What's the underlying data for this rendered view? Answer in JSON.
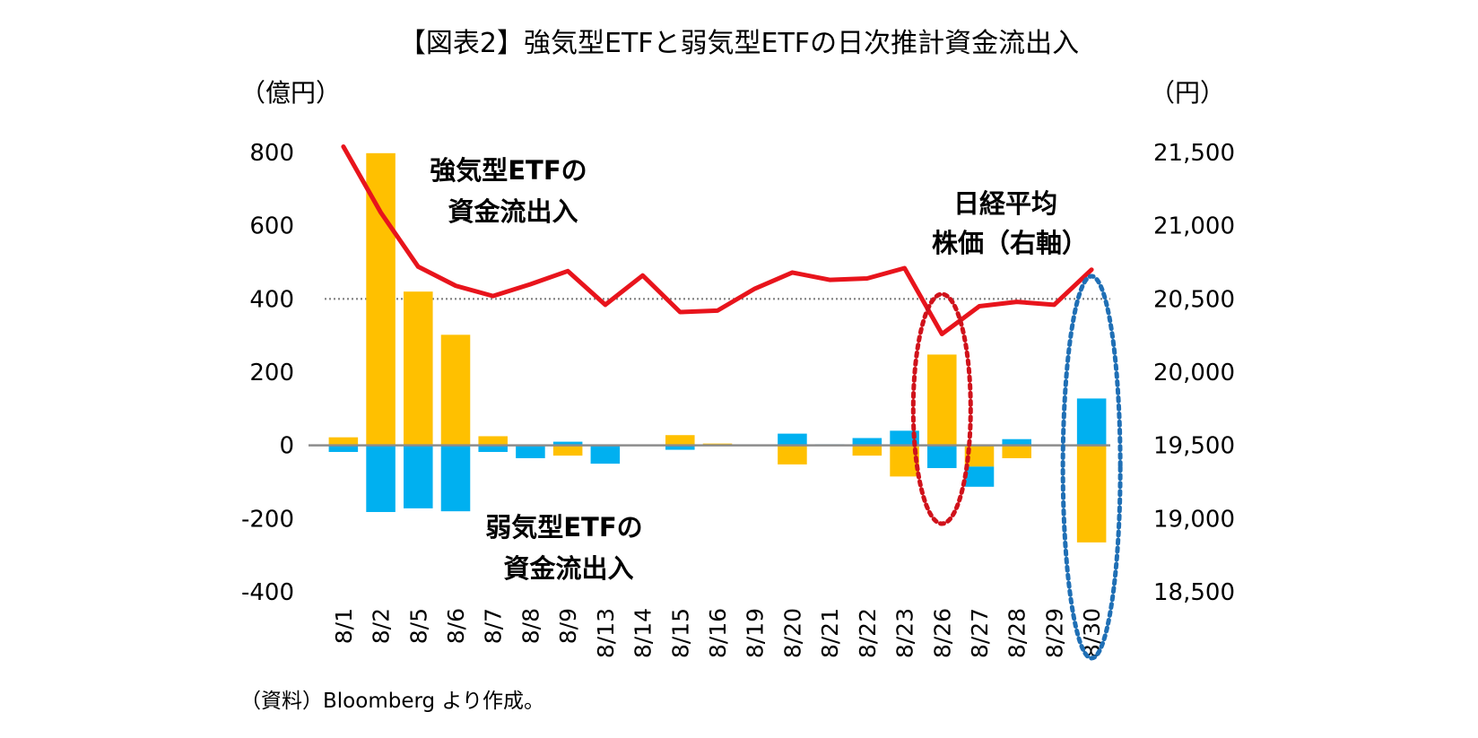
{
  "chart_data": {
    "type": "bar+line",
    "title": "【図表2】強気型ETFと弱気型ETFの日次推計資金流出入",
    "left_unit": "（億円）",
    "right_unit": "（円）",
    "categories": [
      "8/1",
      "8/2",
      "8/5",
      "8/6",
      "8/7",
      "8/8",
      "8/9",
      "8/13",
      "8/14",
      "8/15",
      "8/16",
      "8/19",
      "8/20",
      "8/21",
      "8/22",
      "8/23",
      "8/26",
      "8/27",
      "8/28",
      "8/29",
      "8/30"
    ],
    "series": [
      {
        "name": "強気型ETFの資金流出入",
        "axis": "left",
        "kind": "bar",
        "color": "#FFC000",
        "values": [
          22,
          798,
          420,
          302,
          25,
          0,
          -28,
          0,
          0,
          28,
          5,
          0,
          -52,
          0,
          -28,
          -85,
          248,
          -58,
          -35,
          0,
          -265
        ]
      },
      {
        "name": "弱気型ETFの資金流出入",
        "axis": "left",
        "kind": "bar",
        "color": "#00B0F0",
        "values": [
          -18,
          -182,
          -172,
          -180,
          -18,
          -35,
          10,
          -50,
          0,
          -12,
          0,
          0,
          32,
          3,
          20,
          40,
          -62,
          -55,
          17,
          0,
          128
        ]
      },
      {
        "name": "日経平均株価（右軸）",
        "axis": "right",
        "kind": "line",
        "color": "#E8141C",
        "values": [
          21540,
          21090,
          20720,
          20590,
          20520,
          20600,
          20690,
          20460,
          20660,
          20410,
          20420,
          20570,
          20680,
          20630,
          20640,
          20710,
          20260,
          20450,
          20480,
          20460,
          20700
        ]
      }
    ],
    "y_left": {
      "min": -400,
      "max": 800,
      "ticks": [
        -400,
        -200,
        0,
        200,
        400,
        600,
        800
      ],
      "tick_labels": [
        "-400",
        "-200",
        "0",
        "200",
        "400",
        "600",
        "800"
      ]
    },
    "y_right": {
      "min": 18500,
      "max": 21500,
      "ticks": [
        18500,
        19000,
        19500,
        20000,
        20500,
        21000,
        21500
      ],
      "tick_labels": [
        "18,500",
        "19,000",
        "19,500",
        "20,000",
        "20,500",
        "21,000",
        "21,500"
      ]
    },
    "reference_line": {
      "axis": "left",
      "value": 400,
      "style": "dotted"
    },
    "annotations": {
      "bull_label": [
        "強気型ETFの",
        "資金流出入"
      ],
      "bear_label": [
        "弱気型ETFの",
        "資金流出入"
      ],
      "nikkei_label": [
        "日経平均",
        "株価（右軸）"
      ]
    },
    "highlights": [
      {
        "category": "8/26",
        "color": "#D0121B",
        "style": "dotted-ellipse"
      },
      {
        "category": "8/30",
        "color": "#1F6FB5",
        "style": "dotted-ellipse"
      }
    ],
    "axis_color": "#8C8C8C",
    "reference_line_color": "#808080"
  },
  "source_note": "（資料）Bloomberg より作成。"
}
